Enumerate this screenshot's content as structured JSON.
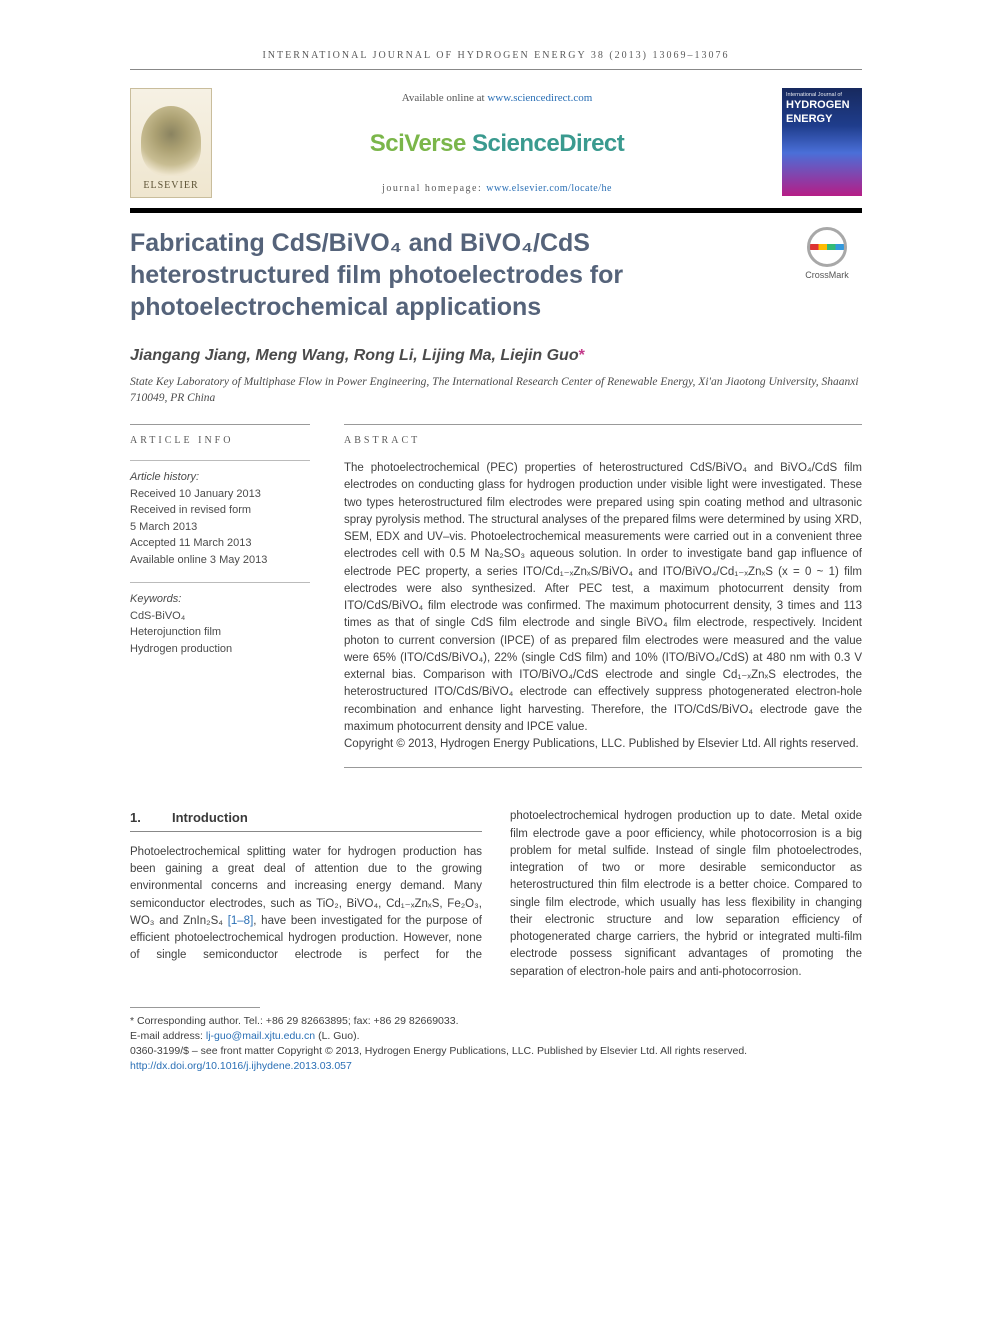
{
  "runningHead": "INTERNATIONAL JOURNAL OF HYDROGEN ENERGY 38 (2013) 13069–13076",
  "publisher": {
    "name": "ELSEVIER",
    "availableText": "Available online at ",
    "availableLink": "www.sciencedirect.com",
    "brandA": "SciVerse ",
    "brandB": "ScienceDirect",
    "homepageLabel": "journal homepage: ",
    "homepageLink": "www.elsevier.com/locate/he"
  },
  "cover": {
    "top": "International Journal of",
    "l1": "HYDROGEN",
    "l2": "ENERGY"
  },
  "title": "Fabricating CdS/BiVO₄ and BiVO₄/CdS heterostructured film photoelectrodes for photoelectrochemical applications",
  "crossmark": "CrossMark",
  "authors": "Jiangang Jiang, Meng Wang, Rong Li, Lijing Ma, Liejin Guo",
  "affiliation": "State Key Laboratory of Multiphase Flow in Power Engineering, The International Research Center of Renewable Energy, Xi'an Jiaotong University, Shaanxi 710049, PR China",
  "articleInfo": {
    "label": "ARTICLE INFO",
    "historyHead": "Article history:",
    "history": [
      "Received 10 January 2013",
      "Received in revised form",
      "5 March 2013",
      "Accepted 11 March 2013",
      "Available online 3 May 2013"
    ],
    "keywordsHead": "Keywords:",
    "keywords": [
      "CdS-BiVO₄",
      "Heterojunction film",
      "Hydrogen production"
    ]
  },
  "abstract": {
    "label": "ABSTRACT",
    "text": "The photoelectrochemical (PEC) properties of heterostructured CdS/BiVO₄ and BiVO₄/CdS film electrodes on conducting glass for hydrogen production under visible light were investigated. These two types heterostructured film electrodes were prepared using spin coating method and ultrasonic spray pyrolysis method. The structural analyses of the prepared films were determined by using XRD, SEM, EDX and UV–vis. Photoelectrochemical measurements were carried out in a convenient three electrodes cell with 0.5 M Na₂SO₃ aqueous solution. In order to investigate band gap influence of electrode PEC property, a series ITO/Cd₁₋ₓZnₓS/BiVO₄ and ITO/BiVO₄/Cd₁₋ₓZnₓS (x = 0 ~ 1) film electrodes were also synthesized. After PEC test, a maximum photocurrent density from ITO/CdS/BiVO₄ film electrode was confirmed. The maximum photocurrent density, 3 times and 113 times as that of single CdS film electrode and single BiVO₄ film electrode, respectively. Incident photon to current conversion (IPCE) of as prepared film electrodes were measured and the value were 65% (ITO/CdS/BiVO₄), 22% (single CdS film) and 10% (ITO/BiVO₄/CdS) at 480 nm with 0.3 V external bias. Comparison with ITO/BiVO₄/CdS electrode and single Cd₁₋ₓZnₓS electrodes, the heterostructured ITO/CdS/BiVO₄ electrode can effectively suppress photogenerated electron-hole recombination and enhance light harvesting. Therefore, the ITO/CdS/BiVO₄ electrode gave the maximum photocurrent density and IPCE value.",
    "copyright": "Copyright © 2013, Hydrogen Energy Publications, LLC. Published by Elsevier Ltd. All rights reserved."
  },
  "sections": {
    "introNum": "1.",
    "introLabel": "Introduction",
    "col1": "Photoelectrochemical splitting water for hydrogen production has been gaining a great deal of attention due to the growing environmental concerns and increasing energy demand. Many semiconductor electrodes, such as TiO₂, BiVO₄, Cd₁₋ₓZnₓS, Fe₂O₃, WO₃ and ZnIn₂S₄ ",
    "refLink": "[1–8]",
    "col1b": ", have been investigated for the purpose of efficient photoelectrochemical hydrogen production. However, none of single semiconductor electrode is perfect for the photoelectrochemical hydrogen",
    "col2": "production up to date. Metal oxide film electrode gave a poor efficiency, while photocorrosion is a big problem for metal sulfide. Instead of single film photoelectrodes, integration of two or more desirable semiconductor as heterostructured thin film electrode is a better choice. Compared to single film electrode, which usually has less flexibility in changing their electronic structure and low separation efficiency of photogenerated charge carriers, the hybrid or integrated multi-film electrode possess significant advantages of promoting the separation of electron-hole pairs and anti-photocorrosion."
  },
  "footnotes": {
    "corr": "* Corresponding author. Tel.: +86 29 82663895; fax: +86 29 82669033.",
    "emailLabel": "E-mail address: ",
    "email": "lj-guo@mail.xjtu.edu.cn",
    "emailTail": " (L. Guo).",
    "issn": "0360-3199/$ – see front matter Copyright © 2013, Hydrogen Energy Publications, LLC. Published by Elsevier Ltd. All rights reserved.",
    "doi": "http://dx.doi.org/10.1016/j.ijhydene.2013.03.057"
  },
  "colors": {
    "link": "#2a6fb5",
    "titleColor": "#55637a",
    "accentPink": "#c43b8b"
  }
}
